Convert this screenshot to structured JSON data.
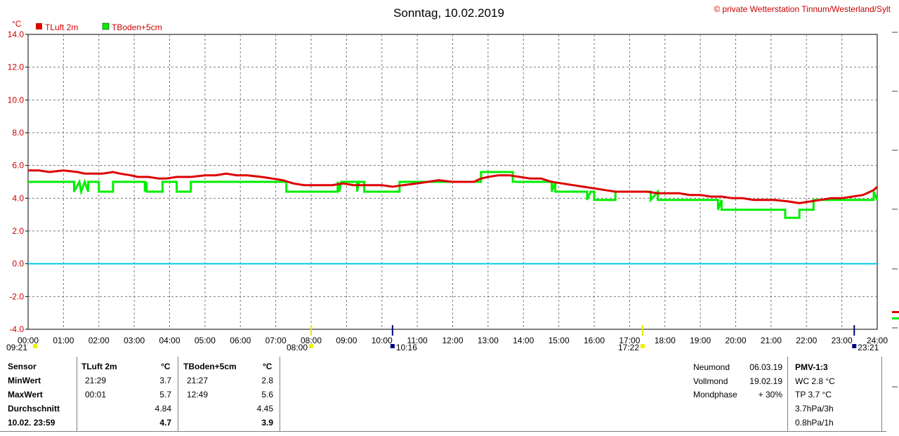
{
  "header": {
    "title": "Sonntag, 10.02.2019",
    "copyright_symbol": "©",
    "copyright": "private Wetterstation Tinnum/Westerland/Sylt",
    "unit": "°C"
  },
  "legend": [
    {
      "name": "TLuft 2m",
      "color": "#dd0000"
    },
    {
      "name": "TBoden+5cm",
      "color": "#00ee00"
    }
  ],
  "chart_data": {
    "type": "line",
    "title": "Sonntag, 10.02.2019",
    "ylabel": "°C",
    "ylim": [
      -4,
      14
    ],
    "xlim": [
      0,
      24
    ],
    "yticks": [
      -4,
      -2,
      0,
      2,
      4,
      6,
      8,
      10,
      12,
      14
    ],
    "ytick_labels": [
      "-4.0",
      "-2.0",
      "0.0",
      "2.0",
      "4.0",
      "6.0",
      "8.0",
      "10.0",
      "12.0",
      "14.0"
    ],
    "xtick_labels": [
      "00:00",
      "01:00",
      "02:00",
      "03:00",
      "04:00",
      "05:00",
      "06:00",
      "07:00",
      "08:00",
      "09:00",
      "10:00",
      "11:00",
      "12:00",
      "13:00",
      "14:00",
      "15:00",
      "16:00",
      "17:00",
      "18:00",
      "19:00",
      "20:00",
      "21:00",
      "22:00",
      "23:00",
      "24:00"
    ],
    "grid": true,
    "reference_line": {
      "y": 0,
      "color": "#00ccee"
    },
    "series": [
      {
        "name": "TLuft 2m",
        "color": "#dd0000",
        "x": [
          0,
          0.3,
          0.6,
          1.0,
          1.4,
          1.6,
          1.9,
          2.1,
          2.4,
          2.6,
          2.9,
          3.1,
          3.4,
          3.7,
          3.9,
          4.2,
          4.6,
          5.0,
          5.3,
          5.6,
          5.9,
          6.2,
          6.6,
          6.9,
          7.2,
          7.5,
          7.8,
          8.0,
          8.3,
          8.6,
          8.9,
          9.2,
          9.6,
          10.0,
          10.3,
          10.6,
          11.0,
          11.3,
          11.6,
          12.0,
          12.3,
          12.6,
          12.8,
          13.0,
          13.3,
          13.6,
          13.9,
          14.2,
          14.5,
          14.8,
          15.1,
          15.4,
          15.7,
          16.0,
          16.3,
          16.6,
          16.9,
          17.2,
          17.5,
          17.8,
          18.1,
          18.4,
          18.7,
          19.0,
          19.3,
          19.6,
          19.9,
          20.2,
          20.5,
          20.8,
          21.1,
          21.5,
          21.8,
          22.1,
          22.4,
          22.7,
          23.0,
          23.3,
          23.6,
          23.9,
          24.0
        ],
        "y": [
          5.7,
          5.7,
          5.6,
          5.7,
          5.6,
          5.5,
          5.5,
          5.5,
          5.6,
          5.5,
          5.4,
          5.3,
          5.3,
          5.2,
          5.2,
          5.3,
          5.3,
          5.4,
          5.4,
          5.5,
          5.4,
          5.4,
          5.3,
          5.2,
          5.1,
          4.9,
          4.8,
          4.8,
          4.8,
          4.8,
          4.9,
          4.8,
          4.8,
          4.8,
          4.7,
          4.8,
          4.9,
          5.0,
          5.1,
          5.0,
          5.0,
          5.0,
          5.2,
          5.3,
          5.4,
          5.4,
          5.3,
          5.2,
          5.2,
          5.0,
          4.9,
          4.8,
          4.7,
          4.6,
          4.5,
          4.4,
          4.4,
          4.4,
          4.4,
          4.3,
          4.3,
          4.3,
          4.2,
          4.2,
          4.1,
          4.1,
          4.0,
          4.0,
          3.9,
          3.9,
          3.9,
          3.8,
          3.7,
          3.8,
          3.9,
          4.0,
          4.0,
          4.1,
          4.2,
          4.5,
          4.7
        ]
      },
      {
        "name": "TBoden+5cm",
        "color": "#00ee00",
        "x": [
          0,
          1.3,
          1.3,
          1.45,
          1.5,
          1.6,
          1.7,
          1.7,
          2.0,
          2.0,
          2.4,
          2.4,
          3.3,
          3.3,
          3.35,
          3.35,
          3.8,
          3.8,
          4.2,
          4.2,
          4.6,
          4.6,
          7.3,
          7.3,
          8.75,
          8.75,
          8.8,
          8.85,
          9.3,
          9.3,
          9.35,
          9.5,
          9.5,
          10.5,
          10.5,
          12.8,
          12.8,
          13.7,
          13.7,
          14.8,
          14.8,
          14.9,
          14.9,
          15.8,
          15.8,
          15.9,
          16.0,
          16.0,
          16.6,
          16.6,
          17.6,
          17.6,
          17.8,
          17.8,
          19.5,
          19.5,
          19.6,
          19.6,
          21.4,
          21.4,
          21.8,
          21.8,
          22.2,
          22.2,
          23.9,
          23.9,
          24.0
        ],
        "y": [
          5.0,
          5.0,
          4.4,
          5.0,
          4.4,
          5.0,
          4.4,
          5.0,
          5.0,
          4.4,
          4.4,
          5.0,
          5.0,
          4.4,
          5.0,
          4.4,
          4.4,
          5.0,
          5.0,
          4.4,
          4.4,
          5.0,
          5.0,
          4.4,
          4.4,
          5.0,
          4.4,
          5.0,
          5.0,
          4.4,
          5.0,
          5.0,
          4.4,
          4.4,
          5.0,
          5.0,
          5.6,
          5.6,
          5.0,
          5.0,
          4.4,
          5.0,
          4.4,
          4.4,
          3.9,
          4.4,
          4.4,
          3.9,
          3.9,
          4.4,
          4.4,
          3.9,
          4.4,
          3.9,
          3.9,
          3.3,
          3.9,
          3.3,
          3.3,
          2.8,
          2.8,
          3.3,
          3.3,
          3.9,
          3.9,
          4.4,
          3.9
        ]
      }
    ],
    "sun_markers": [
      {
        "label": "09:21",
        "hour": 0.2,
        "row": "lower"
      },
      {
        "label": "08:00",
        "hour": 8.0,
        "row": "upper",
        "line": true
      },
      {
        "label": "10:16",
        "hour": 10.3,
        "row": "upper",
        "line": true
      },
      {
        "label": "17:22",
        "hour": 17.37,
        "row": "upper",
        "line": true
      },
      {
        "label": "23:21",
        "hour": 23.35,
        "row": "lower",
        "line": true
      }
    ]
  },
  "table": {
    "headers": [
      "Sensor",
      "TLuft 2m",
      "°C",
      "TBoden+5cm",
      "°C"
    ],
    "rows": [
      {
        "label": "MinWert",
        "t1": "21:29",
        "v1": "3.7",
        "t2": "21:27",
        "v2": "2.8"
      },
      {
        "label": "MaxWert",
        "t1": "00:01",
        "v1": "5.7",
        "t2": "12:49",
        "v2": "5.6"
      },
      {
        "label": "Durchschnitt",
        "t1": "",
        "v1": "4.84",
        "t2": "",
        "v2": "4.45"
      },
      {
        "label": "10.02. 23:59",
        "t1": "",
        "v1": "4.7",
        "t2": "",
        "v2": "3.9"
      }
    ]
  },
  "moon": [
    {
      "label": "Neumond",
      "value": "06.03.19"
    },
    {
      "label": "Vollmond",
      "value": "19.02.19"
    },
    {
      "label": "Mondphase",
      "value": "+ 30%"
    }
  ],
  "pmv": {
    "title": "PMV-1:3",
    "lines": [
      "WC 2.8 °C",
      "TP 3.7 °C",
      "3.7hPa/3h",
      "0.8hPa/1h"
    ]
  }
}
